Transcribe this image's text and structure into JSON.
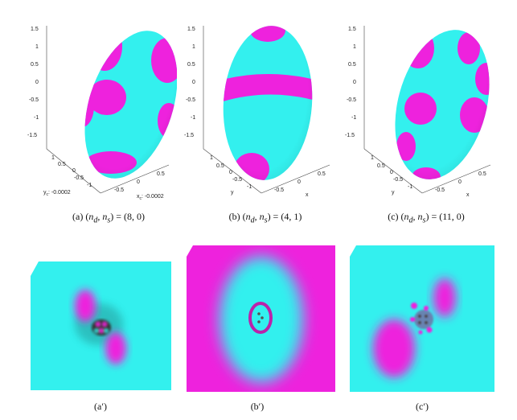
{
  "figure": {
    "captions_top": [
      {
        "label": "(a)",
        "math": "(n_d, n_s) = (8, 0)",
        "nd_label": "n",
        "nd_sub": "d",
        "ns_sub": "s",
        "values": "(8, 0)"
      },
      {
        "label": "(b)",
        "math": "(n_d, n_s) = (4, 1)",
        "nd_label": "n",
        "nd_sub": "d",
        "ns_sub": "s",
        "values": "(4, 1)"
      },
      {
        "label": "(c)",
        "math": "(n_d, n_s) = (11, 0)",
        "nd_label": "n",
        "nd_sub": "d",
        "ns_sub": "s",
        "values": "(11, 0)"
      }
    ],
    "captions_bottom": [
      "(a′)",
      "(b′)",
      "(c′)"
    ],
    "axes": {
      "z_ticks": [
        "1.5",
        "1",
        "0.5",
        "0",
        "-0.5",
        "-1",
        "-1.5"
      ],
      "y_ticks": [
        "1",
        "0.5",
        "0",
        "-0.5",
        "-1"
      ],
      "x_ticks": [
        "0.5",
        "0",
        "-0.5"
      ],
      "panel_a": {
        "y_label": "y",
        "y_sub": "c",
        "y_offset": ": -0.0002",
        "x_label": "x",
        "x_sub": "c",
        "x_offset": ": -0.0002"
      },
      "panel_b": {
        "y_label": "y",
        "x_label": "x"
      },
      "panel_c": {
        "y_label": "y",
        "x_label": "x"
      }
    },
    "colors": {
      "cyan": "#33f0ee",
      "magenta": "#ee22dd",
      "dark": "#333333"
    }
  }
}
